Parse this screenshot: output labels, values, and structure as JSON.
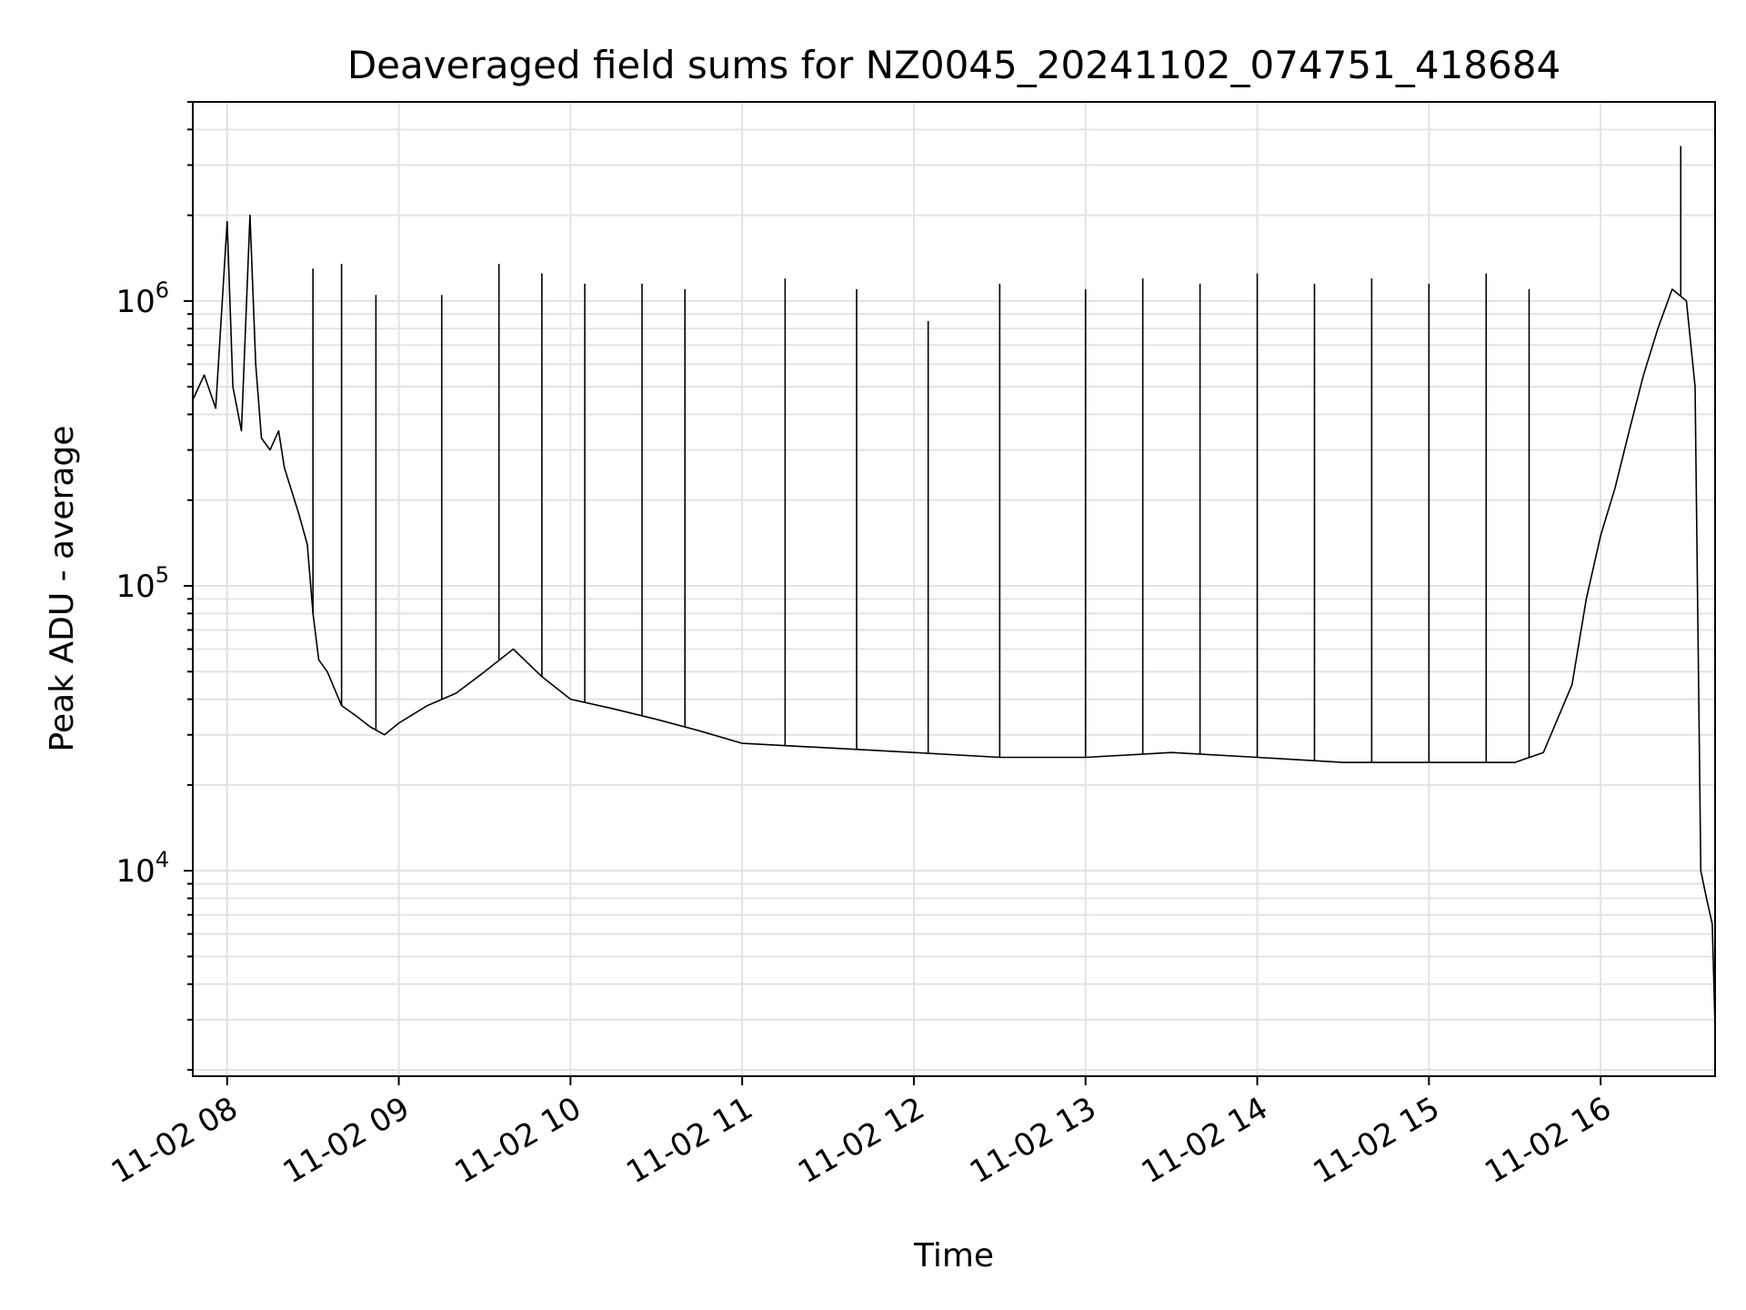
{
  "chart_data": {
    "type": "line",
    "title": "Deaveraged field sums for NZ0045_20241102_074751_418684",
    "xlabel": "Time",
    "ylabel": "Peak ADU - average",
    "xscale": "time",
    "yscale": "log",
    "grid": true,
    "legend": "none",
    "xlim": [
      "2024-11-02 07:48",
      "2024-11-02 16:40"
    ],
    "ylim": [
      1900,
      5000000
    ],
    "x_ticks": [
      "11-02 08",
      "11-02 09",
      "11-02 10",
      "11-02 11",
      "11-02 12",
      "11-02 13",
      "11-02 14",
      "11-02 15",
      "11-02 16"
    ],
    "y_ticks": [
      {
        "base": "10",
        "exp": "4",
        "value": 10000
      },
      {
        "base": "10",
        "exp": "5",
        "value": 100000
      },
      {
        "base": "10",
        "exp": "6",
        "value": 1000000
      }
    ],
    "series": [
      {
        "color": "#000000",
        "points": [
          [
            "2024-11-02 07:48",
            450000
          ],
          [
            "2024-11-02 07:52",
            550000
          ],
          [
            "2024-11-02 07:56",
            420000
          ],
          [
            "2024-11-02 08:00",
            1900000
          ],
          [
            "2024-11-02 08:02",
            500000
          ],
          [
            "2024-11-02 08:05",
            350000
          ],
          [
            "2024-11-02 08:08",
            2000000
          ],
          [
            "2024-11-02 08:10",
            600000
          ],
          [
            "2024-11-02 08:12",
            330000
          ],
          [
            "2024-11-02 08:15",
            300000
          ],
          [
            "2024-11-02 08:18",
            350000
          ],
          [
            "2024-11-02 08:20",
            260000
          ],
          [
            "2024-11-02 08:25",
            180000
          ],
          [
            "2024-11-02 08:28",
            140000
          ],
          [
            "2024-11-02 08:30",
            80000
          ],
          [
            "2024-11-02 08:32",
            55000
          ],
          [
            "2024-11-02 08:35",
            50000
          ],
          [
            "2024-11-02 08:40",
            38000
          ],
          [
            "2024-11-02 08:45",
            35000
          ],
          [
            "2024-11-02 08:50",
            32000
          ],
          [
            "2024-11-02 08:55",
            30000
          ],
          [
            "2024-11-02 09:00",
            33000
          ],
          [
            "2024-11-02 09:10",
            38000
          ],
          [
            "2024-11-02 09:20",
            42000
          ],
          [
            "2024-11-02 09:30",
            50000
          ],
          [
            "2024-11-02 09:40",
            60000
          ],
          [
            "2024-11-02 09:50",
            48000
          ],
          [
            "2024-11-02 10:00",
            40000
          ],
          [
            "2024-11-02 10:15",
            37000
          ],
          [
            "2024-11-02 10:30",
            34000
          ],
          [
            "2024-11-02 10:45",
            31000
          ],
          [
            "2024-11-02 11:00",
            28000
          ],
          [
            "2024-11-02 11:30",
            27000
          ],
          [
            "2024-11-02 12:00",
            26000
          ],
          [
            "2024-11-02 12:30",
            25000
          ],
          [
            "2024-11-02 13:00",
            25000
          ],
          [
            "2024-11-02 13:30",
            26000
          ],
          [
            "2024-11-02 14:00",
            25000
          ],
          [
            "2024-11-02 14:30",
            24000
          ],
          [
            "2024-11-02 15:00",
            24000
          ],
          [
            "2024-11-02 15:30",
            24000
          ],
          [
            "2024-11-02 15:40",
            26000
          ],
          [
            "2024-11-02 15:50",
            45000
          ],
          [
            "2024-11-02 15:55",
            90000
          ],
          [
            "2024-11-02 16:00",
            150000
          ],
          [
            "2024-11-02 16:05",
            220000
          ],
          [
            "2024-11-02 16:10",
            350000
          ],
          [
            "2024-11-02 16:15",
            550000
          ],
          [
            "2024-11-02 16:20",
            800000
          ],
          [
            "2024-11-02 16:25",
            1100000
          ],
          [
            "2024-11-02 16:30",
            1000000
          ],
          [
            "2024-11-02 16:33",
            500000
          ],
          [
            "2024-11-02 16:35",
            10000
          ],
          [
            "2024-11-02 16:37",
            8000
          ],
          [
            "2024-11-02 16:39",
            6500
          ],
          [
            "2024-11-02 16:40",
            2800
          ]
        ],
        "spikes": [
          [
            "2024-11-02 08:30",
            1300000
          ],
          [
            "2024-11-02 08:40",
            1350000
          ],
          [
            "2024-11-02 08:52",
            1050000
          ],
          [
            "2024-11-02 09:15",
            1050000
          ],
          [
            "2024-11-02 09:35",
            1350000
          ],
          [
            "2024-11-02 09:50",
            1250000
          ],
          [
            "2024-11-02 10:05",
            1150000
          ],
          [
            "2024-11-02 10:25",
            1150000
          ],
          [
            "2024-11-02 10:40",
            1100000
          ],
          [
            "2024-11-02 11:15",
            1200000
          ],
          [
            "2024-11-02 11:40",
            1100000
          ],
          [
            "2024-11-02 12:05",
            850000
          ],
          [
            "2024-11-02 12:30",
            1150000
          ],
          [
            "2024-11-02 13:00",
            1100000
          ],
          [
            "2024-11-02 13:20",
            1200000
          ],
          [
            "2024-11-02 13:40",
            1150000
          ],
          [
            "2024-11-02 14:00",
            1250000
          ],
          [
            "2024-11-02 14:20",
            1150000
          ],
          [
            "2024-11-02 14:40",
            1200000
          ],
          [
            "2024-11-02 15:00",
            1150000
          ],
          [
            "2024-11-02 15:20",
            1250000
          ],
          [
            "2024-11-02 15:35",
            1100000
          ],
          [
            "2024-11-02 16:28",
            3500000
          ]
        ]
      }
    ]
  }
}
